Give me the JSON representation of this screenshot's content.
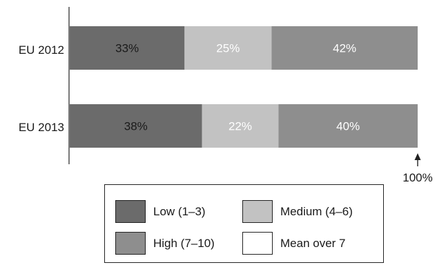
{
  "chart_data": {
    "type": "bar",
    "orientation": "horizontal",
    "stacked": true,
    "categories": [
      "EU 2012",
      "EU 2013"
    ],
    "series": [
      {
        "name": "Low (1–3)",
        "values": [
          33,
          38
        ],
        "labels": [
          "33%",
          "38%"
        ],
        "color": "#6b6b6b",
        "label_color": "#1a1a1a"
      },
      {
        "name": "Medium (4–6)",
        "values": [
          25,
          22
        ],
        "labels": [
          "25%",
          "22%"
        ],
        "color": "#c2c2c2",
        "label_color": "#ffffff"
      },
      {
        "name": "High (7–10)",
        "values": [
          42,
          40
        ],
        "labels": [
          "42%",
          "40%"
        ],
        "color": "#8e8e8e",
        "label_color": "#ffffff"
      }
    ],
    "xlim": [
      0,
      100
    ],
    "end_marker_label": "100%",
    "legend": {
      "placement": "bottom",
      "items": [
        {
          "label": "Low (1–3)",
          "color": "#6b6b6b"
        },
        {
          "label": "Medium (4–6)",
          "color": "#c2c2c2"
        },
        {
          "label": "High (7–10)",
          "color": "#8e8e8e"
        },
        {
          "label": "Mean over 7",
          "color": "#ffffff"
        }
      ]
    }
  }
}
